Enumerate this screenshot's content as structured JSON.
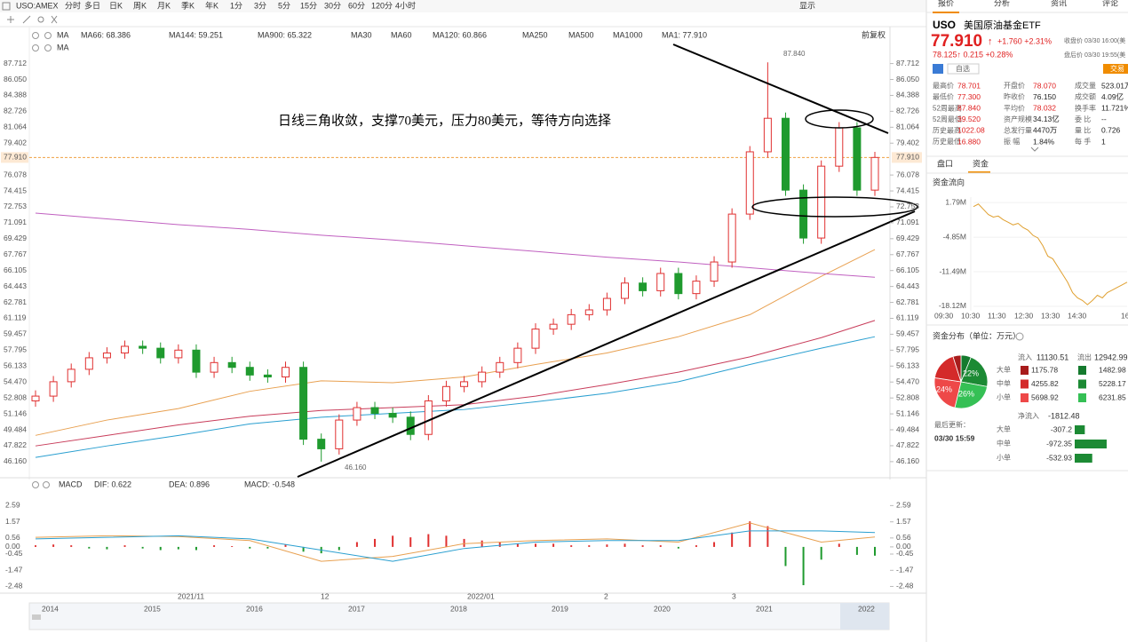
{
  "toolbar": {
    "symbol": "USO:AMEX",
    "periods": [
      "分时",
      "多日",
      "日K",
      "周K",
      "月K",
      "季K",
      "年K",
      "1分",
      "3分",
      "5分",
      "15分",
      "30分",
      "60分",
      "120分",
      "4小时"
    ],
    "display": "显示"
  },
  "main_chart": {
    "ma_title": "MA",
    "ma_title2": "MA",
    "adjust": "前复权",
    "ma_labels": [
      {
        "text": "MA66: 68.386",
        "color": "#e8893a"
      },
      {
        "text": "MA144: 59.251",
        "color": "#2a9fd0"
      },
      {
        "text": "MA900: 65.322",
        "color": "#c060c0"
      },
      {
        "text": "MA30",
        "color": "#9bc4e0"
      },
      {
        "text": "MA60",
        "color": "#9bc4e0"
      },
      {
        "text": "MA120: 60.866",
        "color": "#e04040"
      },
      {
        "text": "MA250",
        "color": "#b0cfe8"
      },
      {
        "text": "MA500",
        "color": "#f3c98a"
      },
      {
        "text": "MA1000",
        "color": "#b0cfe8"
      },
      {
        "text": "MA1: 77.910",
        "color": "#555555"
      }
    ],
    "annotation": "日线三角收敛，支撑70美元，压力80美元，等待方向选择",
    "ylim": [
      45.5,
      88.6
    ],
    "yticks": [
      87.712,
      {
        "value": 86.05,
        "label": "86.050"
      },
      84.388,
      82.726,
      81.064,
      79.402,
      76.078,
      74.415,
      72.753,
      71.091,
      69.429,
      67.767,
      66.105,
      64.443,
      62.781,
      61.119,
      59.457,
      57.795,
      56.133,
      {
        "value": 54.47,
        "label": "54.470"
      },
      52.808,
      51.146,
      49.484,
      47.822,
      {
        "value": 46.16,
        "label": "46.160"
      }
    ],
    "current_price": {
      "value": 77.91,
      "label": "77.910"
    },
    "high": {
      "value": 87.84,
      "label": "87.840"
    },
    "low": {
      "value": 46.16,
      "label": "46.160"
    },
    "up_color": "#e03030",
    "down_color": "#1f9a2e",
    "candles": {
      "open": [
        52.5,
        53,
        54.5,
        55.8,
        57,
        57.5,
        58.2,
        58,
        57,
        57.8,
        55.5,
        56.5,
        56,
        55.2,
        55,
        56,
        48.5,
        47.5,
        50.5,
        51.8,
        51.2,
        50.8,
        49,
        52.5,
        54,
        54.5,
        55.5,
        56.5,
        58,
        60,
        60.5,
        61.5,
        62,
        63.2,
        64.8,
        64,
        65.8,
        63.7,
        65,
        67,
        72,
        78.5,
        82,
        74.5,
        69.5,
        77,
        81,
        74.5
      ],
      "high": [
        53.6,
        55.1,
        56.4,
        57.6,
        58.1,
        58.8,
        58.8,
        58.6,
        58.4,
        58.4,
        57.1,
        57.1,
        56.6,
        55.8,
        56.6,
        56.6,
        49.1,
        51.1,
        52.4,
        52.4,
        51.8,
        51.4,
        53.1,
        54.6,
        55.1,
        56.1,
        57.1,
        58.6,
        60.6,
        61.1,
        62.1,
        62.6,
        63.8,
        65.4,
        65.4,
        66.4,
        66.4,
        65.6,
        67.6,
        72.6,
        79.1,
        87.84,
        82.6,
        75.1,
        77.6,
        81.6,
        81.6,
        78.5
      ],
      "low": [
        51.9,
        52.4,
        53.9,
        55.2,
        56.4,
        56.9,
        57.4,
        56.4,
        56.4,
        54.9,
        54.9,
        55.4,
        54.6,
        54.4,
        54.4,
        47.9,
        46.16,
        46.9,
        49.9,
        50.6,
        50.2,
        48.4,
        48.4,
        51.9,
        53.4,
        53.9,
        54.9,
        55.9,
        57.4,
        59.4,
        59.9,
        60.9,
        61.4,
        62.6,
        63.4,
        63.4,
        63.1,
        63.1,
        64.4,
        66.4,
        71.4,
        77.9,
        73.9,
        68.9,
        68.9,
        76.4,
        73.9,
        73.9
      ],
      "close": [
        53,
        54.5,
        55.8,
        57,
        57.5,
        58.2,
        58,
        57,
        57.8,
        55.5,
        56.5,
        56,
        55.2,
        55,
        56,
        48.5,
        47.5,
        50.5,
        51.8,
        51.2,
        50.8,
        49,
        52.5,
        54,
        54.5,
        55.5,
        56.5,
        58,
        60,
        60.5,
        61.5,
        62,
        63.2,
        64.8,
        64,
        65.8,
        63.7,
        65,
        67,
        72,
        78.5,
        82,
        74.5,
        69.5,
        77,
        81,
        74.5,
        77.91
      ]
    },
    "ma_x": [
      0,
      4,
      8,
      12,
      16,
      20,
      24,
      28,
      32,
      36,
      40,
      44,
      47
    ],
    "ma_lines": [
      {
        "color": "#e8a050",
        "values": [
          48.9,
          50.5,
          51.7,
          53.5,
          54.6,
          54.4,
          55.0,
          56.3,
          57.5,
          59.2,
          61.5,
          65.5,
          68.3
        ]
      },
      {
        "color": "#c83c5a",
        "values": [
          47.8,
          48.9,
          50.0,
          50.9,
          51.5,
          51.8,
          52.1,
          53.0,
          54.2,
          55.5,
          57.1,
          59.1,
          60.9
        ]
      },
      {
        "color": "#2a9fd0",
        "values": [
          46.6,
          47.8,
          48.9,
          50.1,
          50.8,
          51.2,
          51.6,
          52.4,
          53.3,
          54.5,
          56.3,
          58.0,
          59.2
        ]
      },
      {
        "color": "#c060c0",
        "values": [
          72.1,
          71.5,
          70.9,
          70.4,
          69.8,
          69.3,
          68.7,
          68.1,
          67.5,
          67.0,
          66.4,
          65.8,
          65.4
        ]
      }
    ]
  },
  "macd_chart": {
    "title": "MACD",
    "dif_label": "DIF: 0.622",
    "dea_label": "DEA: 0.896",
    "macd_label": "MACD: -0.548",
    "ylim": [
      -2.9,
      3.0
    ],
    "yticks": [
      2.59,
      1.57,
      0.56,
      {
        "value": 0,
        "label": "0.00"
      },
      -0.45,
      -1.47,
      -2.48
    ],
    "histogram": [
      0.1,
      0.15,
      0.1,
      -0.1,
      -0.15,
      0.1,
      -0.1,
      -0.2,
      -0.15,
      -0.2,
      0.1,
      0.05,
      -0.1,
      -0.1,
      0.15,
      -0.3,
      -0.4,
      -0.2,
      0.3,
      0.5,
      0.7,
      0.6,
      0.8,
      0.7,
      0.5,
      0.4,
      0.3,
      0.2,
      0.2,
      0.2,
      0.1,
      0.1,
      0.15,
      0.2,
      0.1,
      0.1,
      -0.1,
      0.1,
      0.3,
      0.9,
      1.6,
      1.3,
      -1.2,
      -2.4,
      -0.8,
      0.2,
      -0.5,
      -0.55
    ],
    "dif": {
      "color": "#e8a050",
      "values": [
        0.6,
        0.7,
        0.65,
        0.4,
        -0.9,
        -0.6,
        0.2,
        0.4,
        0.5,
        0.3,
        1.5,
        0.3,
        0.62
      ]
    },
    "dea": {
      "color": "#2a9fd0",
      "values": [
        0.5,
        0.6,
        0.7,
        0.5,
        -0.2,
        -0.9,
        -0.1,
        0.3,
        0.4,
        0.4,
        1.0,
        1.0,
        0.9
      ]
    }
  },
  "time_axis": {
    "months": [
      "2021/11",
      "12",
      "2022/01",
      "2",
      "3"
    ],
    "years": [
      "2014",
      "2015",
      "2016",
      "2017",
      "2018",
      "2019",
      "2020",
      "2021",
      "2022"
    ]
  },
  "quote": {
    "tabs": [
      "报价",
      "分析",
      "资讯",
      "评论"
    ],
    "symbol": "USO",
    "name": "美国原油基金ETF",
    "price": "77.910",
    "arrow": "↑",
    "change": "+1.760 +2.31%",
    "close_time": "收盘价 03/30 16:00(美",
    "after_hours": "78.125↑ 0.215 +0.28%",
    "after_time": "盘后价 03/30 19:55(美",
    "watch": "自选",
    "trade": "交易",
    "stats": [
      [
        [
          "最高价",
          "78.701"
        ],
        [
          "开盘价",
          "78.070"
        ],
        [
          "成交量",
          "523.01万"
        ]
      ],
      [
        [
          "最低价",
          "77.300"
        ],
        [
          "昨收价",
          "76.150"
        ],
        [
          "成交额",
          "4.09亿"
        ]
      ],
      [
        [
          "52周最高",
          "87.840"
        ],
        [
          "平均价",
          "78.032"
        ],
        [
          "换手率",
          "11.721%"
        ]
      ],
      [
        [
          "52周最低",
          "39.520"
        ],
        [
          "资产规模",
          "34.13亿"
        ],
        [
          "委  比",
          "--"
        ]
      ],
      [
        [
          "历史最高",
          "1022.08"
        ],
        [
          "总发行量",
          "4470万"
        ],
        [
          "量  比",
          "0.726"
        ]
      ],
      [
        [
          "历史最低",
          "16.880"
        ],
        [
          "振  幅",
          "1.84%"
        ],
        [
          "每  手",
          "1"
        ]
      ]
    ],
    "subtabs": [
      "盘口",
      "资金"
    ]
  },
  "fund_flow": {
    "title": "资金流向",
    "color": "#e0a030",
    "ylim": [
      -20,
      3
    ],
    "yticks": [
      {
        "value": 1.79,
        "label": "1.79M"
      },
      {
        "value": -4.85,
        "label": "-4.85M"
      },
      {
        "value": -11.49,
        "label": "-11.49M"
      },
      {
        "value": -18.12,
        "label": "-18.12M"
      }
    ],
    "xticks": [
      "09:30",
      "10:30",
      "11:30",
      "12:30",
      "13:30",
      "14:30",
      "16"
    ],
    "values": [
      1.0,
      1.5,
      0.5,
      -0.5,
      -1.0,
      -0.8,
      -1.5,
      -2.0,
      -2.5,
      -2.2,
      -3.0,
      -3.5,
      -4.5,
      -5.0,
      -6.5,
      -8.5,
      -9.0,
      -10.5,
      -12.0,
      -13.5,
      -15.5,
      -16.5,
      -17.0,
      -17.8,
      -17.0,
      -16.0,
      -16.5,
      -15.5,
      -15.0,
      -14.5,
      -14.0,
      -13.5
    ]
  },
  "fund_distribution": {
    "title": "资金分布（单位：万元）",
    "inflow_label": "流入",
    "inflow_total": 11130.51,
    "outflow_label": "流出",
    "outflow_total": 12942.99,
    "rows": [
      {
        "name": "大单",
        "in": 1175.78,
        "out": 1482.98,
        "in_color": "#a81c1c",
        "out_color": "#157a2e"
      },
      {
        "name": "中单",
        "in": 4255.82,
        "out": 5228.17,
        "in_color": "#d42a2a",
        "out_color": "#1c8a34"
      },
      {
        "name": "小单",
        "in": 5698.92,
        "out": 6231.85,
        "in_color": "#ee4848",
        "out_color": "#35c055"
      }
    ],
    "pie_labels": [
      {
        "value": 22,
        "label": "22%"
      },
      {
        "value": 26,
        "label": "26%"
      },
      {
        "value": 24,
        "label": "24%"
      }
    ],
    "updated_label": "最后更新：",
    "updated": "03/30 15:59"
  },
  "net_flow": {
    "label": "净流入",
    "total": -1812.48,
    "color": "#1c8a34",
    "rows": [
      {
        "name": "大单",
        "value": -307.2
      },
      {
        "name": "中单",
        "value": -972.35
      },
      {
        "name": "小单",
        "value": -532.93
      }
    ]
  }
}
